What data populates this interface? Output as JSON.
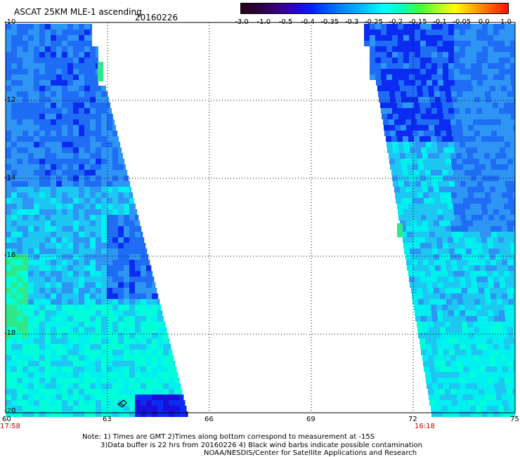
{
  "header": {
    "title": "ASCAT 25KM MLE-1 ascending",
    "date": "20160226"
  },
  "colorbar": {
    "colors": [
      "#2a0020",
      "#2b003f",
      "#3a007a",
      "#2a00d0",
      "#0020ff",
      "#0060ff",
      "#0095ff",
      "#00c8ff",
      "#00ffff",
      "#00ffc0",
      "#40ff40",
      "#a0ff20",
      "#ffff00",
      "#ffb000",
      "#ff6000",
      "#ff1000"
    ],
    "labels": [
      "-3.0",
      "-1.0",
      "-0.5",
      "-0.4",
      "-0.35",
      "-0.3",
      "-0.25",
      "-0.2",
      "-0.15",
      "-0.1",
      "-0.05",
      "0.0",
      "1.0"
    ]
  },
  "axes": {
    "y_labels": [
      "-10",
      "-12",
      "-14",
      "-16",
      "-18",
      "-20"
    ],
    "x_labels": [
      "60",
      "63",
      "66",
      "69",
      "72",
      "75"
    ],
    "time_left": "17:58",
    "time_right": "16:18"
  },
  "notes": {
    "line1": "Note: 1) Times are GMT 2)Times along bottom correspond to measurement at -15S",
    "line2": "3)Data buffer is 22 hrs from 20160226 4) Black wind barbs indicate possible contamination",
    "line3": "NOAA/NESDIS/Center for Satellite Applications and Research"
  },
  "palette": {
    "deep_blue": "#0b2cf0",
    "blue": "#1f6cf5",
    "mid_blue": "#2f95f5",
    "light_blue": "#1ec6f2",
    "cyan": "#00f0f0",
    "aqua": "#00ffd8",
    "green": "#2ee88a",
    "violet": "#1a0fd8"
  }
}
